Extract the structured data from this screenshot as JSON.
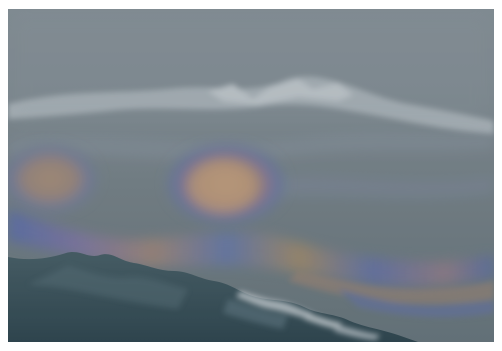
{
  "photo": {
    "subject": "oil-slick-on-water-aerial",
    "colors": {
      "fog_top": "#7f8a91",
      "water_mid": "#6e7a80",
      "water_dark": "#2f4750",
      "sheen_orange": "#b08a6a",
      "sheen_blue": "#4d6aa8",
      "sheen_purple": "#7a6aa0",
      "foam": "#c9d0d4"
    }
  }
}
